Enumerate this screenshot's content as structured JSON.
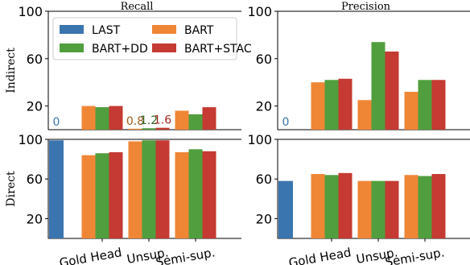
{
  "chart_data": [
    {
      "type": "bar",
      "panel": "top-left",
      "title": "Recall",
      "ylabel": "Indirect",
      "categories": [
        "",
        "Gold Head",
        "Unsup.",
        "Semi-sup."
      ],
      "ylim": [
        0,
        100
      ],
      "yticks": [
        20,
        60,
        100
      ],
      "series": [
        {
          "name": "LAST",
          "color": "#3b75af",
          "values": [
            0,
            null,
            null,
            null
          ]
        },
        {
          "name": "BART",
          "color": "#ef8636",
          "values": [
            null,
            20,
            0.8,
            16
          ]
        },
        {
          "name": "BART+DD",
          "color": "#519e3e",
          "values": [
            null,
            19,
            1.2,
            13
          ]
        },
        {
          "name": "BART+STAC",
          "color": "#c53a32",
          "values": [
            null,
            20,
            1.6,
            19
          ]
        }
      ],
      "annotations": [
        {
          "text": "0",
          "series": 0,
          "category": 0,
          "color": "#3b75af"
        },
        {
          "text": "0.8",
          "series": 1,
          "category": 2,
          "color": "#9c5a1d"
        },
        {
          "text": "1.2",
          "series": 2,
          "category": 2,
          "color": "#2f6a26"
        },
        {
          "text": "1.6",
          "series": 3,
          "category": 2,
          "color": "#a3241f"
        }
      ],
      "legend": {
        "placement": "top",
        "columns": 2
      }
    },
    {
      "type": "bar",
      "panel": "top-right",
      "title": "Precision",
      "ylabel": "",
      "categories": [
        "",
        "Gold Head",
        "Unsup.",
        "Semi-sup."
      ],
      "ylim": [
        0,
        100
      ],
      "yticks": [
        20,
        60,
        100
      ],
      "series": [
        {
          "name": "LAST",
          "color": "#3b75af",
          "values": [
            0,
            null,
            null,
            null
          ]
        },
        {
          "name": "BART",
          "color": "#ef8636",
          "values": [
            null,
            40,
            25,
            32
          ]
        },
        {
          "name": "BART+DD",
          "color": "#519e3e",
          "values": [
            null,
            42,
            74,
            42
          ]
        },
        {
          "name": "BART+STAC",
          "color": "#c53a32",
          "values": [
            null,
            43,
            66,
            42
          ]
        }
      ],
      "annotations": [
        {
          "text": "0",
          "series": 0,
          "category": 0,
          "color": "#3b75af"
        }
      ]
    },
    {
      "type": "bar",
      "panel": "bottom-left",
      "title": "",
      "ylabel": "Direct",
      "categories": [
        "",
        "Gold Head",
        "Unsup.",
        "Semi-sup."
      ],
      "ylim": [
        0,
        100
      ],
      "yticks": [
        20,
        60,
        100
      ],
      "series": [
        {
          "name": "LAST",
          "color": "#3b75af",
          "values": [
            99,
            null,
            null,
            null
          ]
        },
        {
          "name": "BART",
          "color": "#ef8636",
          "values": [
            null,
            84,
            98,
            87
          ]
        },
        {
          "name": "BART+DD",
          "color": "#519e3e",
          "values": [
            null,
            86,
            99,
            90
          ]
        },
        {
          "name": "BART+STAC",
          "color": "#c53a32",
          "values": [
            null,
            87,
            99,
            88
          ]
        }
      ]
    },
    {
      "type": "bar",
      "panel": "bottom-right",
      "title": "",
      "ylabel": "",
      "categories": [
        "",
        "Gold Head",
        "Unsup.",
        "Semi-sup."
      ],
      "ylim": [
        0,
        100
      ],
      "yticks": [
        20,
        60,
        100
      ],
      "series": [
        {
          "name": "LAST",
          "color": "#3b75af",
          "values": [
            58,
            null,
            null,
            null
          ]
        },
        {
          "name": "BART",
          "color": "#ef8636",
          "values": [
            null,
            65,
            58,
            64
          ]
        },
        {
          "name": "BART+DD",
          "color": "#519e3e",
          "values": [
            null,
            64,
            58,
            63
          ]
        },
        {
          "name": "BART+STAC",
          "color": "#c53a32",
          "values": [
            null,
            66,
            58,
            65
          ]
        }
      ]
    }
  ]
}
